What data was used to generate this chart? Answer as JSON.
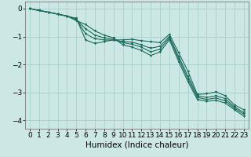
{
  "xlabel": "Humidex (Indice chaleur)",
  "xlim": [
    -0.5,
    23.5
  ],
  "ylim": [
    -4.3,
    0.25
  ],
  "yticks": [
    0,
    -1,
    -2,
    -3,
    -4
  ],
  "xticks": [
    0,
    1,
    2,
    3,
    4,
    5,
    6,
    7,
    8,
    9,
    10,
    11,
    12,
    13,
    14,
    15,
    16,
    17,
    18,
    19,
    20,
    21,
    22,
    23
  ],
  "background_color": "#cce8e4",
  "grid_color": "#aad0cc",
  "line_color": "#1a6b5a",
  "line1_y": [
    0.0,
    -0.07,
    -0.13,
    -0.2,
    -0.27,
    -0.35,
    -1.12,
    -1.25,
    -1.18,
    -1.12,
    -1.12,
    -1.1,
    -1.15,
    -1.18,
    -1.22,
    -0.92,
    -1.58,
    -2.25,
    -3.07,
    -3.05,
    -2.98,
    -3.12,
    -3.45,
    -3.62
  ],
  "line2_y": [
    0.0,
    -0.07,
    -0.13,
    -0.2,
    -0.27,
    -0.38,
    -0.9,
    -1.08,
    -1.12,
    -1.13,
    -1.18,
    -1.2,
    -1.3,
    -1.42,
    -1.35,
    -1.0,
    -1.72,
    -2.42,
    -3.12,
    -3.18,
    -3.12,
    -3.22,
    -3.52,
    -3.72
  ],
  "line3_y": [
    0.0,
    -0.07,
    -0.13,
    -0.2,
    -0.27,
    -0.4,
    -0.72,
    -0.95,
    -1.05,
    -1.1,
    -1.22,
    -1.28,
    -1.38,
    -1.55,
    -1.45,
    -1.05,
    -1.8,
    -2.52,
    -3.18,
    -3.25,
    -3.2,
    -3.3,
    -3.57,
    -3.78
  ],
  "line4_y": [
    0.0,
    -0.07,
    -0.13,
    -0.2,
    -0.27,
    -0.43,
    -0.57,
    -0.8,
    -0.95,
    -1.05,
    -1.3,
    -1.38,
    -1.5,
    -1.68,
    -1.55,
    -1.12,
    -1.9,
    -2.62,
    -3.25,
    -3.32,
    -3.28,
    -3.38,
    -3.62,
    -3.85
  ],
  "tick_fontsize": 6.5,
  "label_fontsize": 7.5,
  "marker_size": 2.0,
  "line_width": 0.8
}
